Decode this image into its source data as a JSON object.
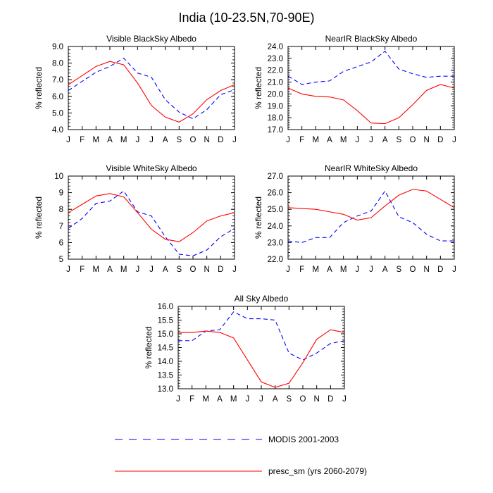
{
  "title": "India (10-23.5N,70-90E)",
  "legend": [
    {
      "label": "MODIS 2001-2003",
      "color": "#0000ff",
      "dash": true
    },
    {
      "label": "presc_sm (yrs 2060-2079)",
      "color": "#ff0000",
      "dash": false
    }
  ],
  "chart_data": [
    {
      "type": "line",
      "title": "Visible BlackSky Albedo",
      "xlabel": "",
      "ylabel": "% reflected",
      "categories": [
        "J",
        "F",
        "M",
        "A",
        "M",
        "J",
        "J",
        "A",
        "S",
        "O",
        "N",
        "D",
        "J"
      ],
      "ylim": [
        4.0,
        9.0
      ],
      "yticks": [
        4.0,
        5.0,
        6.0,
        7.0,
        8.0,
        9.0
      ],
      "ydecimals": 1,
      "series": [
        {
          "name": "MODIS 2001-2003",
          "values": [
            6.35,
            6.9,
            7.45,
            7.8,
            8.3,
            7.4,
            7.15,
            5.8,
            5.05,
            4.65,
            5.2,
            6.1,
            6.4
          ]
        },
        {
          "name": "presc_sm (yrs 2060-2079)",
          "values": [
            6.7,
            7.25,
            7.8,
            8.1,
            7.9,
            6.8,
            5.45,
            4.75,
            4.45,
            4.95,
            5.8,
            6.35,
            6.7
          ]
        }
      ]
    },
    {
      "type": "line",
      "title": "NearIR BlackSky Albedo",
      "xlabel": "",
      "ylabel": "% reflected",
      "categories": [
        "J",
        "F",
        "M",
        "A",
        "M",
        "J",
        "J",
        "A",
        "S",
        "O",
        "N",
        "D",
        "J"
      ],
      "ylim": [
        17.0,
        24.0
      ],
      "yticks": [
        17.0,
        18.0,
        19.0,
        20.0,
        21.0,
        22.0,
        23.0,
        24.0
      ],
      "ydecimals": 1,
      "series": [
        {
          "name": "MODIS 2001-2003",
          "values": [
            21.5,
            20.8,
            21.0,
            21.1,
            21.9,
            22.3,
            22.7,
            23.6,
            22.1,
            21.7,
            21.4,
            21.5,
            21.5
          ]
        },
        {
          "name": "presc_sm (yrs 2060-2079)",
          "values": [
            20.5,
            20.0,
            19.8,
            19.75,
            19.5,
            18.6,
            17.55,
            17.5,
            18.0,
            19.1,
            20.3,
            20.8,
            20.5
          ]
        }
      ]
    },
    {
      "type": "line",
      "title": "Visible WhiteSky Albedo",
      "xlabel": "",
      "ylabel": "% reflected",
      "categories": [
        "J",
        "F",
        "M",
        "A",
        "M",
        "J",
        "J",
        "A",
        "S",
        "O",
        "N",
        "D",
        "J"
      ],
      "ylim": [
        5,
        10
      ],
      "yticks": [
        5,
        6,
        7,
        8,
        9,
        10
      ],
      "ydecimals": 0,
      "series": [
        {
          "name": "MODIS 2001-2003",
          "values": [
            6.85,
            7.45,
            8.35,
            8.5,
            9.1,
            7.85,
            7.6,
            6.35,
            5.3,
            5.2,
            5.55,
            6.35,
            6.85
          ]
        },
        {
          "name": "presc_sm (yrs 2060-2079)",
          "values": [
            7.8,
            8.3,
            8.8,
            8.95,
            8.75,
            7.8,
            6.8,
            6.2,
            6.05,
            6.6,
            7.3,
            7.6,
            7.8
          ]
        }
      ]
    },
    {
      "type": "line",
      "title": "NearIR WhiteSky Albedo",
      "xlabel": "",
      "ylabel": "% reflected",
      "categories": [
        "J",
        "F",
        "M",
        "A",
        "M",
        "J",
        "J",
        "A",
        "S",
        "O",
        "N",
        "D",
        "J"
      ],
      "ylim": [
        22.0,
        27.0
      ],
      "yticks": [
        22.0,
        23.0,
        24.0,
        25.0,
        26.0,
        27.0
      ],
      "ydecimals": 1,
      "series": [
        {
          "name": "MODIS 2001-2003",
          "values": [
            23.1,
            23.0,
            23.3,
            23.3,
            24.2,
            24.6,
            24.9,
            26.1,
            24.55,
            24.2,
            23.5,
            23.1,
            23.1
          ]
        },
        {
          "name": "presc_sm (yrs 2060-2079)",
          "values": [
            25.1,
            25.05,
            25.0,
            24.85,
            24.7,
            24.35,
            24.5,
            25.2,
            25.85,
            26.2,
            26.1,
            25.6,
            25.1
          ]
        }
      ]
    },
    {
      "type": "line",
      "title": "All Sky Albedo",
      "xlabel": "",
      "ylabel": "% reflected",
      "categories": [
        "J",
        "F",
        "M",
        "A",
        "M",
        "J",
        "J",
        "A",
        "S",
        "O",
        "N",
        "D",
        "J"
      ],
      "ylim": [
        13.0,
        16.0
      ],
      "yticks": [
        13.0,
        13.5,
        14.0,
        14.5,
        15.0,
        15.5,
        16.0
      ],
      "ydecimals": 1,
      "series": [
        {
          "name": "MODIS 2001-2003",
          "values": [
            14.75,
            14.75,
            15.1,
            15.15,
            15.8,
            15.55,
            15.55,
            15.5,
            14.3,
            14.05,
            14.3,
            14.65,
            14.75
          ]
        },
        {
          "name": "presc_sm (yrs 2060-2079)",
          "values": [
            15.05,
            15.05,
            15.1,
            15.05,
            14.85,
            14.05,
            13.25,
            13.05,
            13.2,
            13.95,
            14.8,
            15.15,
            15.05
          ]
        }
      ]
    }
  ]
}
